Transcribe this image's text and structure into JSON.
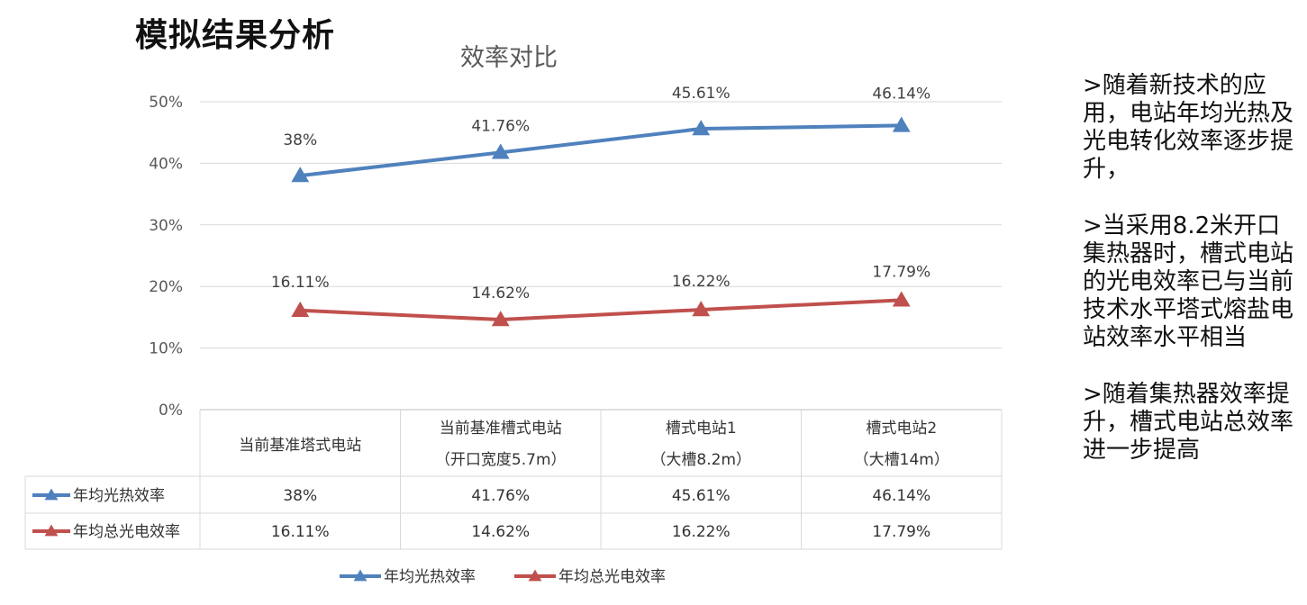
{
  "page": {
    "title": "模拟结果分析"
  },
  "side_notes": [
    ">随着新技术的应用，电站年均光热及光电转化效率逐步提升，",
    ">当采用8.2米开口集热器时，槽式电站的光电效率已与当前技术水平塔式熔盐电站效率水平相当",
    ">随着集热器效率提升，槽式电站总效率进一步提高"
  ],
  "chart_data": {
    "type": "line",
    "title": "效率对比",
    "xlabel": "",
    "ylabel": "",
    "ylim": [
      0,
      50
    ],
    "yticks": [
      "0%",
      "10%",
      "20%",
      "30%",
      "40%",
      "50%"
    ],
    "grid": true,
    "legend_position": "bottom",
    "categories": [
      [
        "当前基准塔式电站"
      ],
      [
        "当前基准槽式电站",
        "（开口宽度5.7m）"
      ],
      [
        "槽式电站1",
        "（大槽8.2m）"
      ],
      [
        "槽式电站2",
        "（大槽14m）"
      ]
    ],
    "series": [
      {
        "name": "年均光热效率",
        "color": "#4F81BD",
        "values": [
          38,
          41.76,
          45.61,
          46.14
        ],
        "labels": [
          "38%",
          "41.76%",
          "45.61%",
          "46.14%"
        ]
      },
      {
        "name": "年均总光电效率",
        "color": "#C0504D",
        "values": [
          16.11,
          14.62,
          16.22,
          17.79
        ],
        "labels": [
          "16.11%",
          "14.62%",
          "16.22%",
          "17.79%"
        ]
      }
    ]
  }
}
